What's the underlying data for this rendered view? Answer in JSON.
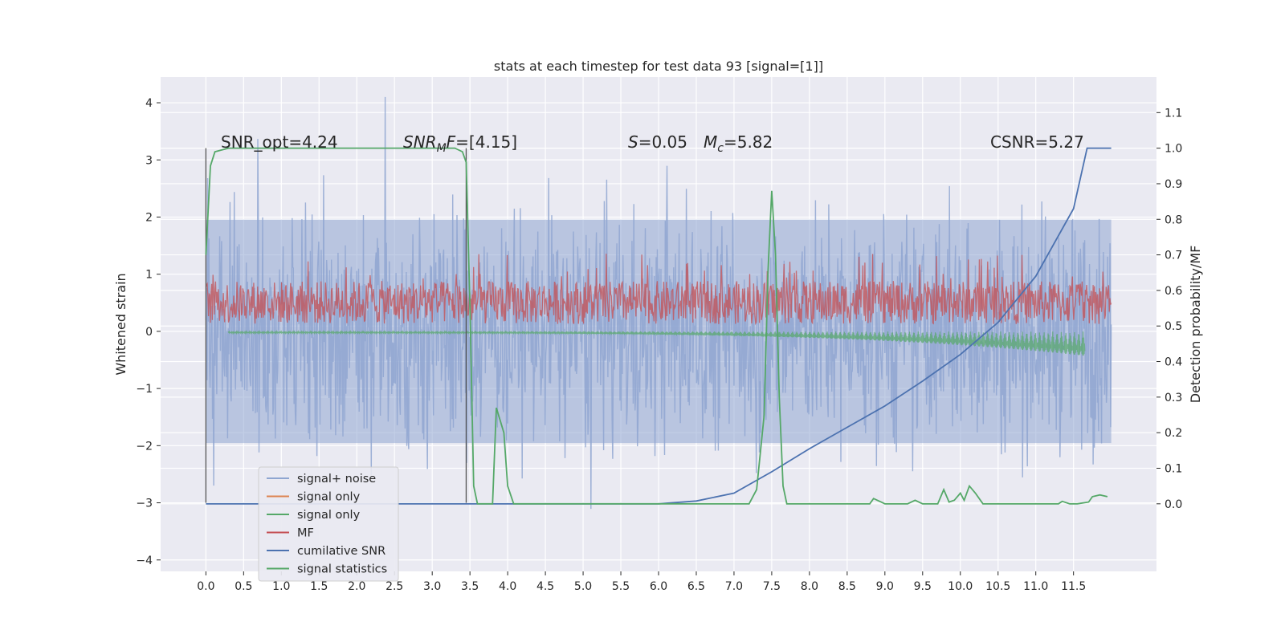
{
  "chart_data": {
    "type": "line",
    "title": "stats at each timestep for test data 93 [signal=[1]]",
    "xlabel": "",
    "ylabel": "Whitened strain",
    "y2label": "Detection probability/MF",
    "xlim": [
      -0.6,
      12.6
    ],
    "ylim": [
      -4.2,
      4.45
    ],
    "y2lim": [
      -0.19,
      1.2
    ],
    "x_ticks": [
      "0.0",
      "0.5",
      "1.0",
      "1.5",
      "2.0",
      "2.5",
      "3.0",
      "3.5",
      "4.0",
      "4.5",
      "5.0",
      "5.5",
      "6.0",
      "6.5",
      "7.0",
      "7.5",
      "8.0",
      "8.5",
      "9.0",
      "9.5",
      "10.0",
      "10.5",
      "11.0",
      "11.5"
    ],
    "y_ticks": [
      "−4",
      "−3",
      "−2",
      "−1",
      "0",
      "1",
      "2",
      "3",
      "4"
    ],
    "y2_ticks": [
      "0.0",
      "0.1",
      "0.2",
      "0.3",
      "0.4",
      "0.5",
      "0.6",
      "0.7",
      "0.8",
      "0.9",
      "1.0",
      "1.1"
    ],
    "grid": true,
    "legend_position": "lower-left",
    "annotations": {
      "snr_opt": "SNR_opt=4.24",
      "snr_mf": "=[4.15]",
      "snr_mf_sym": "SNR",
      "snr_mf_sub": "M",
      "snr_mf_f": "F",
      "s_sym": "S",
      "s_val": "=0.05",
      "mc_sym": "M",
      "mc_sub": "c",
      "mc_val": "=5.82",
      "csnr": "CSNR=5.27"
    },
    "window_markers": [
      0.0,
      3.45
    ],
    "series": [
      {
        "name": "signal+ noise",
        "color": "#8fa6d1",
        "envelope_upper": 2.3,
        "envelope_lower": -2.3,
        "x_range": [
          0.0,
          12.0
        ]
      },
      {
        "name": "signal only",
        "color": "#dd8452"
      },
      {
        "name": "signal only",
        "color": "#55a868"
      },
      {
        "name": "MF",
        "color": "#c44e52"
      },
      {
        "name": "cumilative SNR",
        "color": "#4c72b0",
        "axis": "right",
        "x": [
          0,
          6.0,
          6.5,
          7.0,
          7.5,
          8.0,
          8.5,
          9.0,
          9.5,
          10.0,
          10.5,
          11.0,
          11.5,
          11.68,
          12.0
        ],
        "y": [
          0,
          0.0,
          0.008,
          0.03,
          0.09,
          0.155,
          0.215,
          0.275,
          0.345,
          0.42,
          0.51,
          0.64,
          0.83,
          1.0,
          1.0
        ]
      },
      {
        "name": "signal statistics",
        "color": "#55a868",
        "axis": "right",
        "x": [
          0.0,
          0.06,
          0.12,
          0.3,
          3.3,
          3.4,
          3.45,
          3.5,
          3.55,
          3.6,
          3.8,
          3.85,
          3.95,
          4.0,
          4.08,
          4.5,
          7.2,
          7.3,
          7.4,
          7.45,
          7.5,
          7.55,
          7.6,
          7.65,
          7.7,
          8.8,
          8.85,
          8.95,
          9.0,
          9.3,
          9.4,
          9.5,
          9.7,
          9.78,
          9.85,
          9.92,
          10.0,
          10.05,
          10.12,
          10.2,
          10.3,
          10.5,
          11.3,
          11.35,
          11.45,
          11.55,
          11.7,
          11.75,
          11.85,
          11.95
        ],
        "y": [
          0.7,
          0.95,
          0.99,
          1.0,
          1.0,
          0.99,
          0.96,
          0.55,
          0.05,
          0.0,
          0.0,
          0.27,
          0.2,
          0.05,
          0.0,
          0.0,
          0.0,
          0.04,
          0.25,
          0.65,
          0.88,
          0.7,
          0.3,
          0.05,
          0.0,
          0.0,
          0.015,
          0.005,
          0.0,
          0.0,
          0.01,
          0.0,
          0.0,
          0.04,
          0.005,
          0.01,
          0.03,
          0.01,
          0.05,
          0.03,
          0.0,
          0.0,
          0.0,
          0.007,
          0.0,
          0.0,
          0.005,
          0.02,
          0.025,
          0.02
        ]
      }
    ]
  }
}
